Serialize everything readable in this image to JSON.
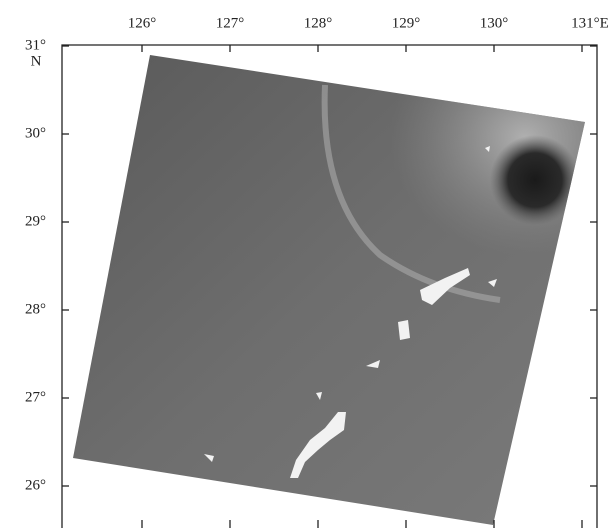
{
  "map": {
    "lon_labels": [
      "126°",
      "127°",
      "128°",
      "129°",
      "130°",
      "131°E"
    ],
    "lat_labels": [
      "31°",
      "30°",
      "29°",
      "28°",
      "27°",
      "26°"
    ],
    "lat_unit": "N"
  }
}
